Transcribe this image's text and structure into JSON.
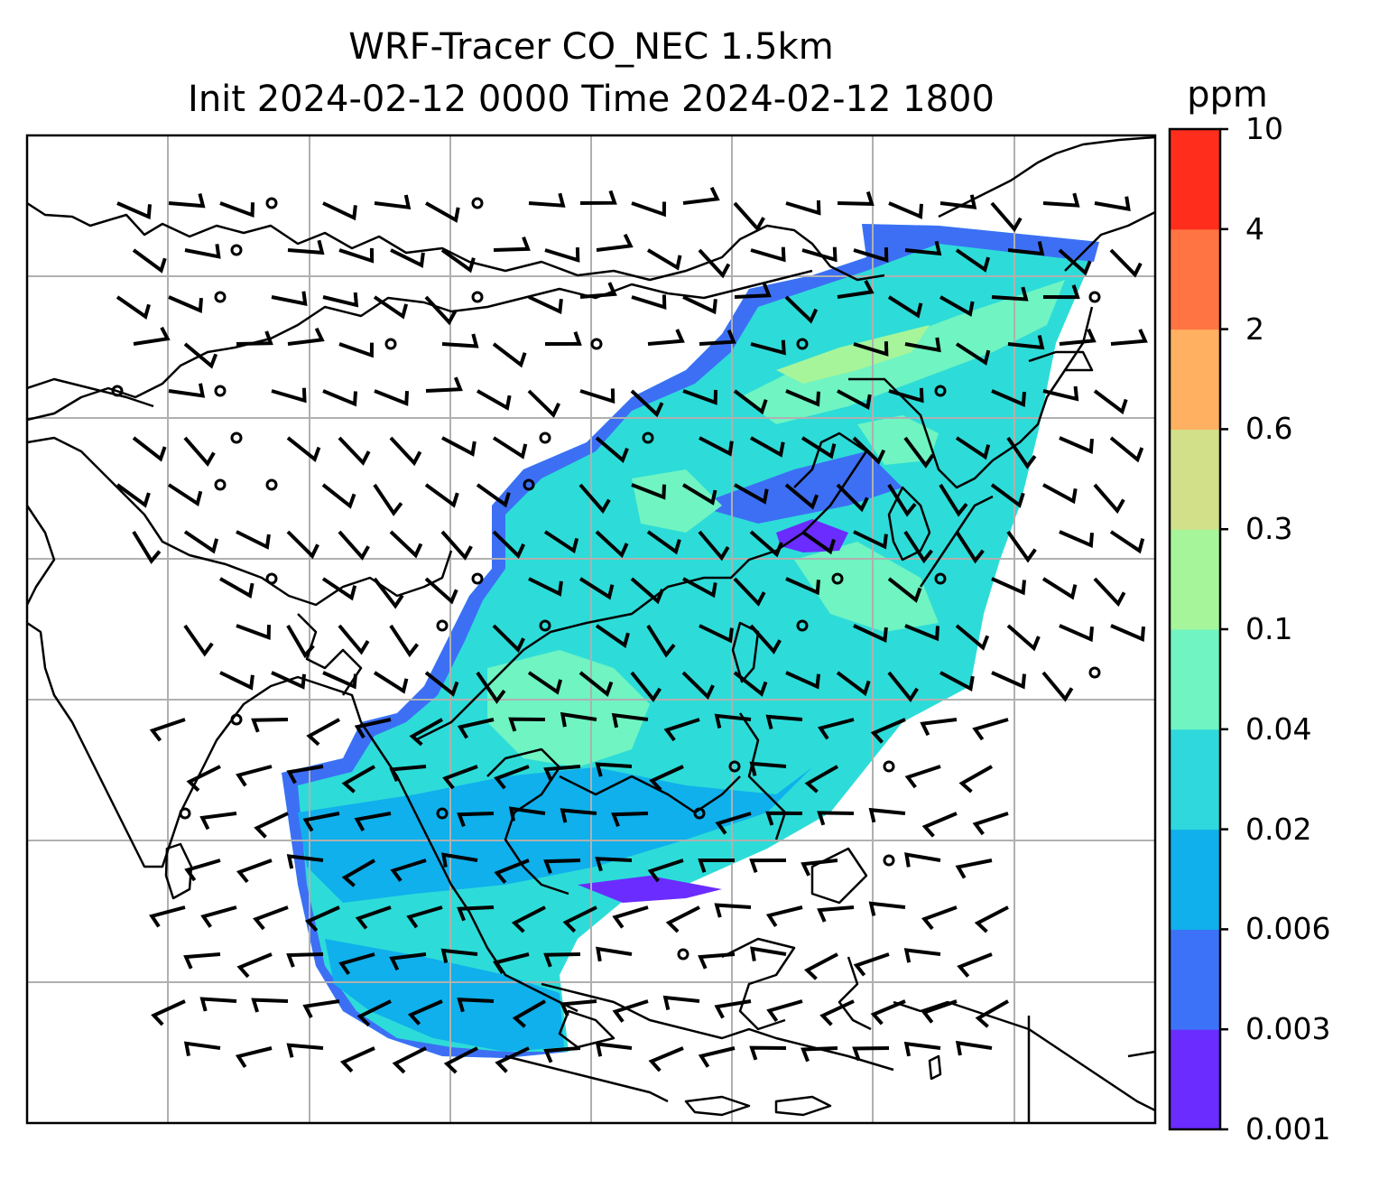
{
  "title": {
    "line1": "WRF-Tracer CO_NEC 1.5km",
    "line2": "Init 2024-02-12 0000 Time 2024-02-12 1800"
  },
  "colorbar": {
    "unit": "ppm",
    "levels": [
      "0.001",
      "0.003",
      "0.006",
      "0.02",
      "0.04",
      "0.1",
      "0.3",
      "0.6",
      "2",
      "4",
      "10"
    ],
    "colors": [
      "#6a2cff",
      "#3c72f7",
      "#0fb0ec",
      "#2fd8dc",
      "#6ff4c2",
      "#a6f59a",
      "#d2e08a",
      "#ffb060",
      "#ff7442",
      "#ff2e1c"
    ]
  },
  "map": {
    "gridlines": true,
    "features": [
      "coastlines",
      "country-borders",
      "wind-barbs"
    ],
    "field_color_scheme": "rainbow"
  }
}
